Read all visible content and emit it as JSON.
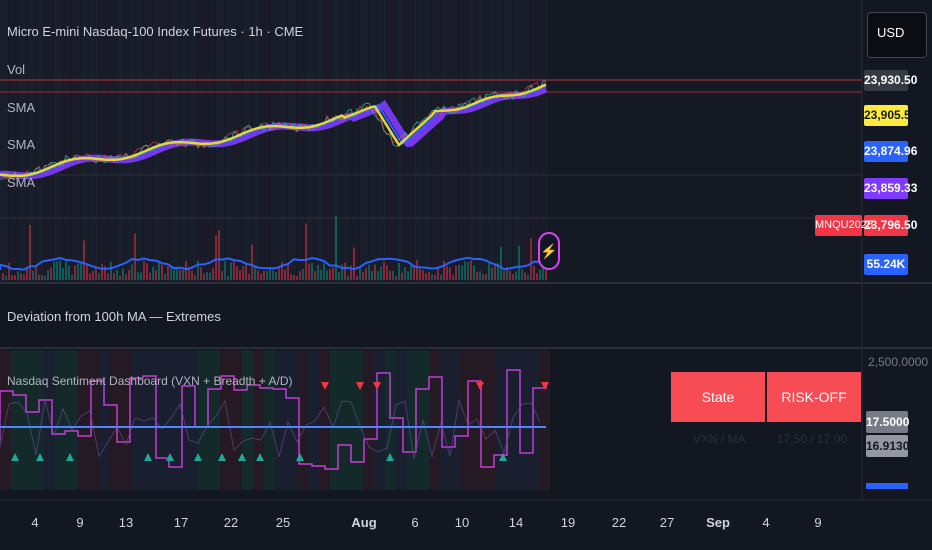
{
  "header": {
    "title": "Micro E-mini Nasdaq-100 Index Futures · 1h · CME",
    "currency": "USD"
  },
  "legend": {
    "vol": "Vol",
    "sma1": "SMA",
    "sma2": "SMA",
    "sma3": "SMA"
  },
  "price_axis": {
    "tags": [
      {
        "label": "23,930.50",
        "bg": "#363a45",
        "fg": "#ffffff"
      },
      {
        "label": "23,905.53",
        "bg": "#ffeb3b",
        "fg": "#131722"
      },
      {
        "label": "23,874.96",
        "bg": "#2962ff",
        "fg": "#ffffff"
      },
      {
        "label": "23,859.33",
        "bg": "#7e3bff",
        "fg": "#ffffff"
      },
      {
        "label": "23,796.50",
        "bg": "#f23645",
        "fg": "#ffffff"
      },
      {
        "label": "55.24K",
        "bg": "#2962ff",
        "fg": "#ffffff"
      }
    ],
    "symbol_tag": "MNQU2025"
  },
  "panes": {
    "deviation_title": "Deviation from 100h MA — Extremes",
    "sentiment_title": "Nasdaq Sentiment Dashboard (VXN + Breadth + A/D)",
    "sentiment_axis_top": "2,500.0000",
    "sentiment_tags": [
      {
        "label": "17.5000",
        "bg": "#787b86",
        "fg": "#ffffff"
      },
      {
        "label": "16.9130",
        "bg": "#9598a1",
        "fg": "#131722"
      }
    ]
  },
  "dashboard": {
    "state_label": "State",
    "state_value": "RISK-OFF",
    "vxn_label": "VXN / MA",
    "vxn_value": "17.50 / 17.00",
    "state_color": "#f74c54"
  },
  "time_axis": {
    "labels": [
      {
        "text": "4"
      },
      {
        "text": "9"
      },
      {
        "text": "13"
      },
      {
        "text": "17"
      },
      {
        "text": "22"
      },
      {
        "text": "25"
      },
      {
        "text": "Aug",
        "bold": true
      },
      {
        "text": "6"
      },
      {
        "text": "10"
      },
      {
        "text": "14"
      },
      {
        "text": "19"
      },
      {
        "text": "22"
      },
      {
        "text": "27"
      },
      {
        "text": "Sep",
        "bold": true
      },
      {
        "text": "4"
      },
      {
        "text": "9"
      }
    ]
  },
  "icons": {
    "alert": "lightning-icon"
  }
}
